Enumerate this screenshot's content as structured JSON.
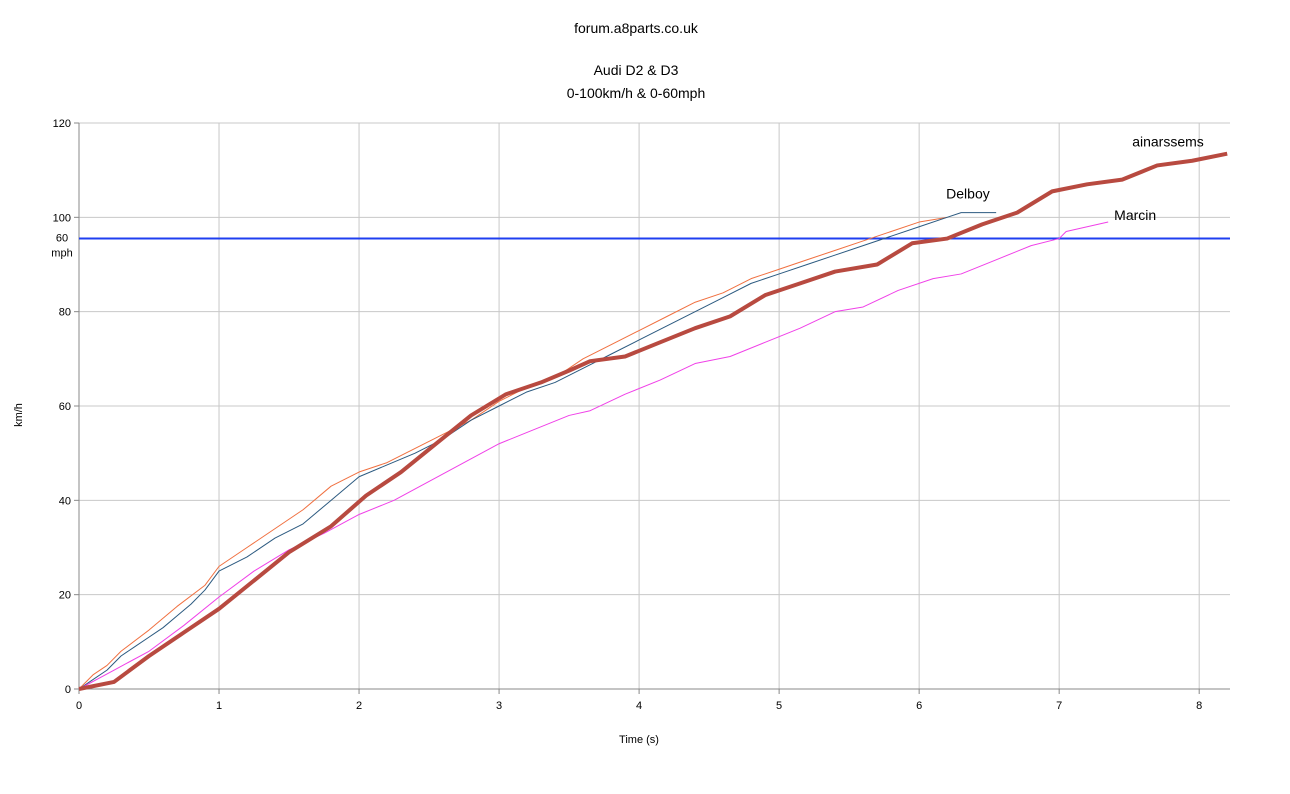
{
  "chart_data": {
    "type": "line",
    "title": "forum.a8parts.co.uk",
    "subtitle": [
      "Audi D2 & D3",
      "0-100km/h & 0-60mph"
    ],
    "x_label": "Time (s)",
    "y_label": "km/h",
    "xlim": [
      0,
      8.22
    ],
    "xticks": [
      0,
      1,
      2,
      3,
      4,
      5,
      6,
      7,
      8
    ],
    "ylim": [
      0,
      120
    ],
    "yticks": [
      0,
      20,
      40,
      60,
      80,
      100,
      120
    ],
    "grid": true,
    "reference_lines": [
      {
        "value": 95.5,
        "label": "60 mph",
        "color": "#1f3ff0",
        "label_color": "#e0401a"
      }
    ],
    "series": [
      {
        "color": "#f07040",
        "width": 1,
        "x": [
          0,
          0.1,
          0.2,
          0.3,
          0.5,
          0.7,
          0.9,
          1,
          1.2,
          1.4,
          1.6,
          1.8,
          2,
          2.2,
          2.4,
          2.6,
          2.8,
          3,
          3.2,
          3.4,
          3.6,
          3.8,
          4,
          4.2,
          4.4,
          4.6,
          4.8,
          5,
          5.2,
          5.4,
          5.6,
          5.8,
          6,
          6.2
        ],
        "values": [
          0,
          3,
          5,
          8,
          12.5,
          17.5,
          22,
          26,
          30,
          34,
          38,
          43,
          46,
          48,
          51,
          54,
          57,
          61,
          64,
          66,
          70,
          73,
          76,
          79,
          82,
          84,
          87,
          89,
          91,
          93,
          95,
          97,
          99,
          100
        ]
      },
      {
        "name": "Delboy",
        "color": "#2c5a80",
        "width": 1,
        "x": [
          0,
          0.1,
          0.2,
          0.3,
          0.4,
          0.5,
          0.6,
          0.7,
          0.8,
          0.9,
          1,
          1.2,
          1.4,
          1.6,
          1.8,
          2,
          2.2,
          2.4,
          2.6,
          2.8,
          3,
          3.2,
          3.4,
          3.6,
          3.8,
          4,
          4.2,
          4.4,
          4.6,
          4.8,
          5,
          5.2,
          5.4,
          5.6,
          5.8,
          6,
          6.2,
          6.3,
          6.55
        ],
        "values": [
          0,
          2,
          4,
          7,
          9,
          11,
          13,
          15.5,
          18,
          21,
          25,
          28,
          32,
          35,
          40,
          45,
          47.5,
          50,
          53,
          57,
          60,
          63,
          65,
          68,
          71,
          74,
          77,
          80,
          83,
          86,
          88,
          90,
          92,
          94,
          96,
          98,
          100,
          101,
          101
        ]
      },
      {
        "name": "Marcin",
        "color": "#f040e8",
        "width": 1,
        "x": [
          0,
          0.25,
          0.5,
          0.75,
          1,
          1.25,
          1.5,
          1.75,
          2,
          2.25,
          2.5,
          2.75,
          3,
          3.25,
          3.5,
          3.65,
          3.9,
          4.15,
          4.4,
          4.65,
          4.9,
          5.15,
          5.4,
          5.6,
          5.85,
          6.1,
          6.3,
          6.55,
          6.8,
          7,
          7.05,
          7.35
        ],
        "values": [
          0,
          4,
          8,
          13.5,
          19.5,
          25,
          29.5,
          33,
          37,
          40,
          44,
          48,
          52,
          55,
          58,
          59,
          62.5,
          65.5,
          69,
          70.5,
          73.5,
          76.5,
          80,
          81,
          84.5,
          87,
          88,
          91,
          94,
          95.5,
          97,
          99
        ]
      },
      {
        "name": "ainarssems",
        "color": "#b84a40",
        "width": 4,
        "x": [
          0,
          0.25,
          0.5,
          0.75,
          1,
          1.25,
          1.5,
          1.8,
          2.05,
          2.3,
          2.55,
          2.8,
          3.05,
          3.3,
          3.5,
          3.65,
          3.9,
          4.15,
          4.4,
          4.65,
          4.9,
          5.15,
          5.4,
          5.7,
          5.95,
          6.2,
          6.45,
          6.7,
          6.95,
          7.2,
          7.45,
          7.7,
          7.95,
          8.2
        ],
        "values": [
          0,
          1.5,
          7,
          12,
          17,
          23,
          29,
          34.5,
          41,
          46,
          52,
          58,
          62.5,
          65,
          67.5,
          69.5,
          70.5,
          73.5,
          76.5,
          79,
          83.5,
          86,
          88.5,
          90,
          94.5,
          95.5,
          98.5,
          101,
          105.5,
          107,
          108,
          111,
          112,
          113.5
        ]
      }
    ]
  }
}
